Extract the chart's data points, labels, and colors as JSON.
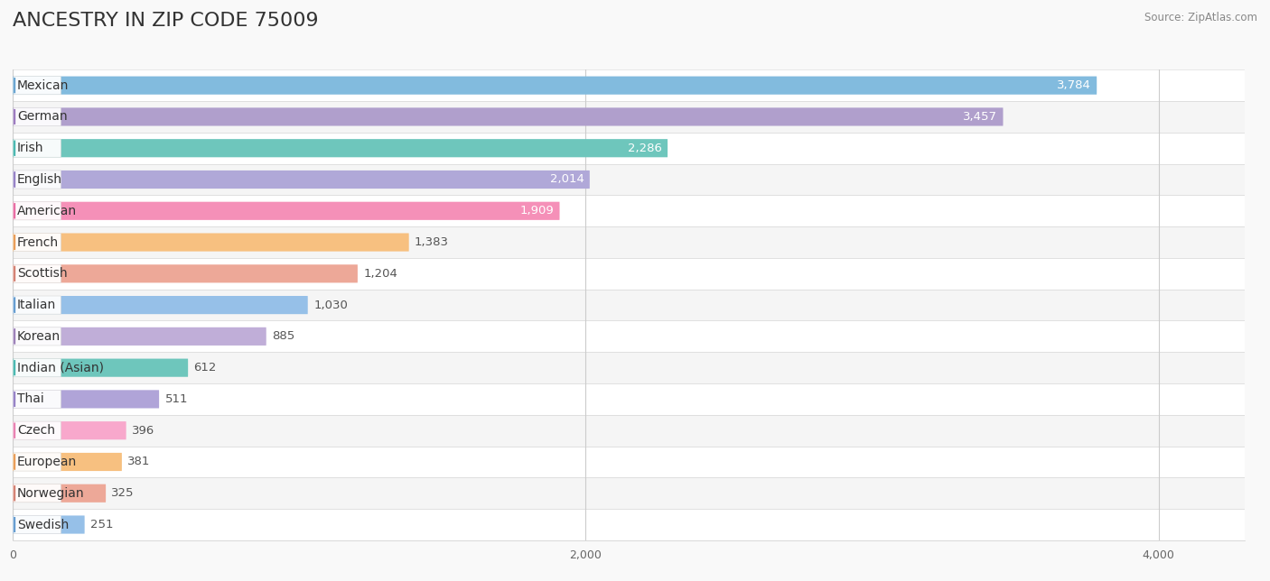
{
  "title": "ANCESTRY IN ZIP CODE 75009",
  "source": "Source: ZipAtlas.com",
  "categories": [
    "Mexican",
    "German",
    "Irish",
    "English",
    "American",
    "French",
    "Scottish",
    "Italian",
    "Korean",
    "Indian (Asian)",
    "Thai",
    "Czech",
    "European",
    "Norwegian",
    "Swedish"
  ],
  "values": [
    3784,
    3457,
    2286,
    2014,
    1909,
    1383,
    1204,
    1030,
    885,
    612,
    511,
    396,
    381,
    325,
    251
  ],
  "bar_colors": [
    "#82bbde",
    "#b09fcc",
    "#6ec6bc",
    "#b0a8d8",
    "#f590b8",
    "#f7c080",
    "#eda898",
    "#96c0e8",
    "#c0aed8",
    "#6ec6bc",
    "#b0a4d8",
    "#f8a8cc",
    "#f7c080",
    "#eda898",
    "#96c0e8"
  ],
  "circle_colors": [
    "#5599cc",
    "#9068b8",
    "#30b0a8",
    "#8870c0",
    "#e85898",
    "#e89040",
    "#d07060",
    "#5090cc",
    "#9070b0",
    "#30b0a8",
    "#8870c0",
    "#e870a8",
    "#e89040",
    "#d07060",
    "#5090cc"
  ],
  "row_colors": [
    "#ffffff",
    "#f5f5f5"
  ],
  "xlim": [
    0,
    4300
  ],
  "xticks": [
    0,
    2000,
    4000
  ],
  "background_color": "#f9f9f9",
  "title_fontsize": 16,
  "label_fontsize": 10,
  "value_fontsize": 9.5,
  "value_threshold": 1909
}
